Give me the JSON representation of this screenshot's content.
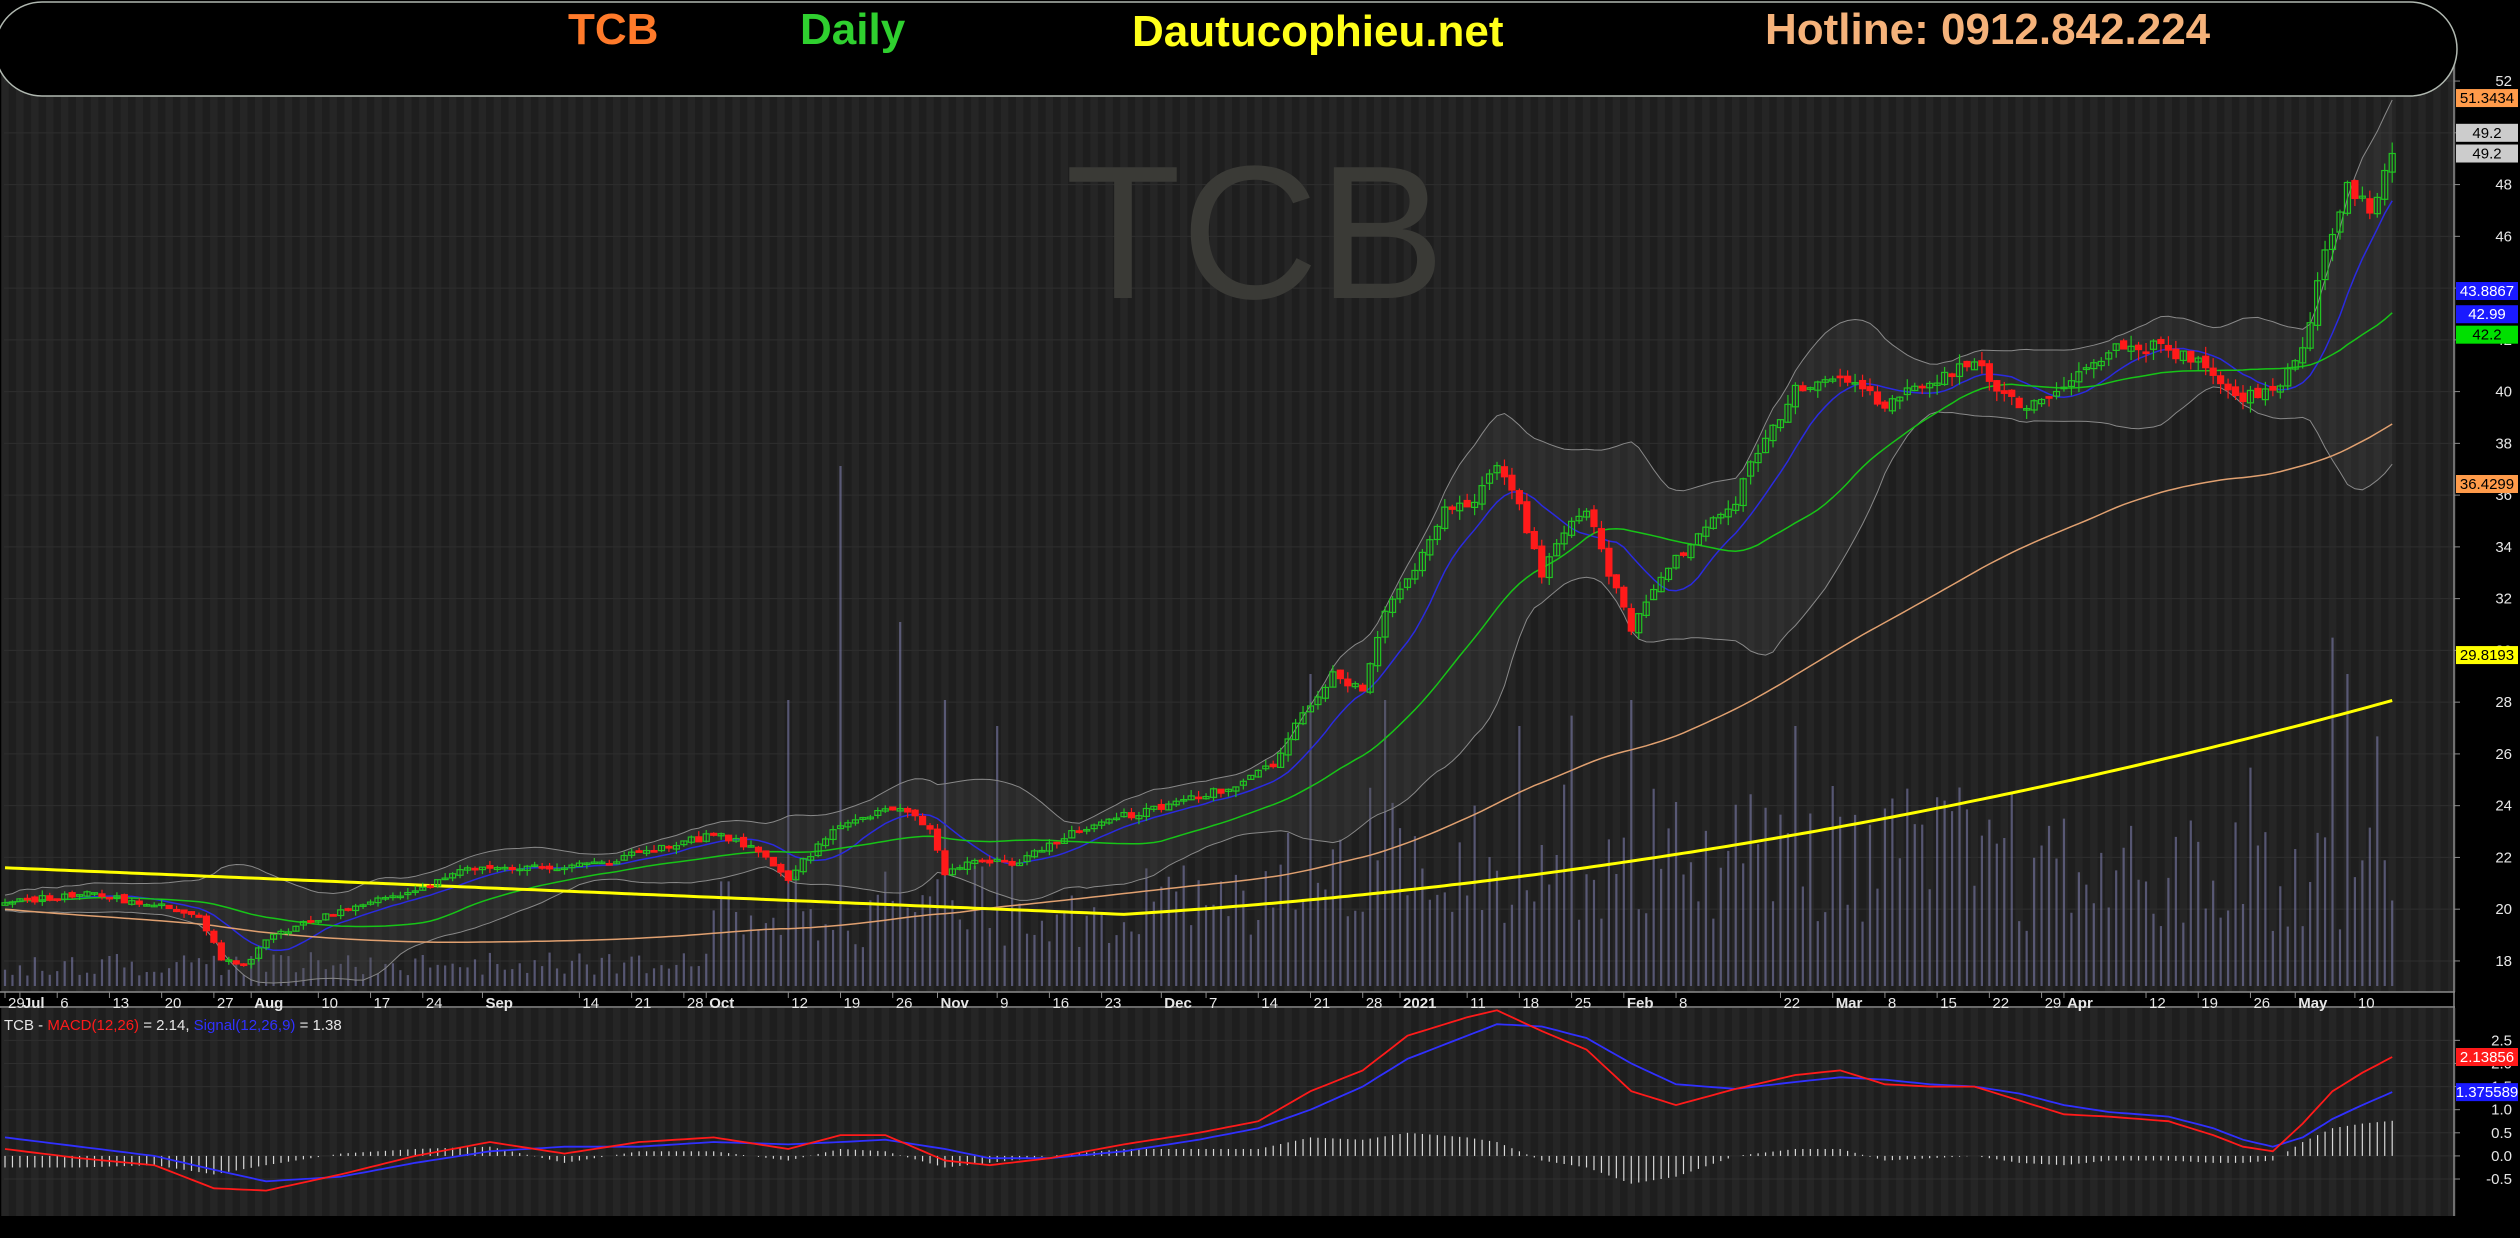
{
  "header": {
    "ticker": "TCB",
    "period": "Daily",
    "site": "Dautucophieu.net",
    "hotline": "Hotline: 0912.842.224"
  },
  "colors": {
    "background": "#000000",
    "plot": "#1e1e1e",
    "up_candle": "#21c421",
    "down_candle": "#ff1a1a",
    "ma_yellow": "#ffff00",
    "ma_tan": "#e0a070",
    "ma_green": "#17c417",
    "ma_blue": "#2a2ae0",
    "bollinger": "#888888",
    "volume": "#8484b8",
    "macd": "#ff1a1a",
    "signal": "#3030ff",
    "ticker_color": "#ff7a2a",
    "period_color": "#2fd02f",
    "site_color": "#ffff1a",
    "hotline_color": "#f5b27a"
  },
  "watermark": "TCB",
  "chart_data": [
    {
      "type": "candlestick",
      "title": "TCB Daily",
      "y_ticks": [
        18,
        20,
        22,
        24,
        26,
        28,
        30,
        32,
        34,
        36,
        38,
        40,
        42,
        44,
        46,
        48,
        50,
        52
      ],
      "ylim": [
        16.8,
        53.2
      ],
      "x_labels": [
        {
          "label": "29",
          "day": 0
        },
        {
          "label": "Jul",
          "day": 2,
          "bold": true
        },
        {
          "label": "6",
          "day": 7
        },
        {
          "label": "13",
          "day": 14
        },
        {
          "label": "20",
          "day": 21
        },
        {
          "label": "27",
          "day": 28
        },
        {
          "label": "Aug",
          "day": 33,
          "bold": true
        },
        {
          "label": "10",
          "day": 42
        },
        {
          "label": "17",
          "day": 49
        },
        {
          "label": "24",
          "day": 56
        },
        {
          "label": "Sep",
          "day": 64,
          "bold": true
        },
        {
          "label": "14",
          "day": 77
        },
        {
          "label": "21",
          "day": 84
        },
        {
          "label": "28",
          "day": 91
        },
        {
          "label": "Oct",
          "day": 94,
          "bold": true
        },
        {
          "label": "12",
          "day": 105
        },
        {
          "label": "19",
          "day": 112
        },
        {
          "label": "26",
          "day": 119
        },
        {
          "label": "Nov",
          "day": 125,
          "bold": true
        },
        {
          "label": "9",
          "day": 133
        },
        {
          "label": "16",
          "day": 140
        },
        {
          "label": "23",
          "day": 147
        },
        {
          "label": "Dec",
          "day": 155,
          "bold": true
        },
        {
          "label": "7",
          "day": 161
        },
        {
          "label": "14",
          "day": 168
        },
        {
          "label": "21",
          "day": 175
        },
        {
          "label": "28",
          "day": 182
        },
        {
          "label": "2021",
          "day": 187,
          "bold": true
        },
        {
          "label": "11",
          "day": 196
        },
        {
          "label": "18",
          "day": 203
        },
        {
          "label": "25",
          "day": 210
        },
        {
          "label": "Feb",
          "day": 217,
          "bold": true
        },
        {
          "label": "8",
          "day": 224
        },
        {
          "label": "22",
          "day": 238
        },
        {
          "label": "Mar",
          "day": 245,
          "bold": true
        },
        {
          "label": "8",
          "day": 252
        },
        {
          "label": "15",
          "day": 259
        },
        {
          "label": "22",
          "day": 266
        },
        {
          "label": "29",
          "day": 273
        },
        {
          "label": "Apr",
          "day": 276,
          "bold": true
        },
        {
          "label": "12",
          "day": 287
        },
        {
          "label": "19",
          "day": 294
        },
        {
          "label": "26",
          "day": 301
        },
        {
          "label": "May",
          "day": 307,
          "bold": true
        },
        {
          "label": "10",
          "day": 315
        }
      ],
      "price_path": [
        [
          0,
          20.2
        ],
        [
          10,
          20.6
        ],
        [
          20,
          20.2
        ],
        [
          26,
          19.8
        ],
        [
          29,
          18.0
        ],
        [
          32,
          17.8
        ],
        [
          36,
          19.0
        ],
        [
          45,
          19.9
        ],
        [
          55,
          20.8
        ],
        [
          62,
          21.5
        ],
        [
          70,
          21.6
        ],
        [
          80,
          21.8
        ],
        [
          90,
          22.5
        ],
        [
          95,
          22.9
        ],
        [
          100,
          22.4
        ],
        [
          105,
          21.2
        ],
        [
          110,
          22.8
        ],
        [
          115,
          23.6
        ],
        [
          120,
          24.0
        ],
        [
          124,
          23.0
        ],
        [
          126,
          21.4
        ],
        [
          130,
          21.8
        ],
        [
          136,
          21.8
        ],
        [
          142,
          22.8
        ],
        [
          150,
          23.6
        ],
        [
          158,
          24.2
        ],
        [
          164,
          24.7
        ],
        [
          170,
          25.6
        ],
        [
          174,
          27.5
        ],
        [
          178,
          29.0
        ],
        [
          182,
          28.5
        ],
        [
          185,
          31.5
        ],
        [
          189,
          33.0
        ],
        [
          193,
          35.5
        ],
        [
          197,
          35.8
        ],
        [
          200,
          37.0
        ],
        [
          203,
          35.5
        ],
        [
          206,
          33.0
        ],
        [
          209,
          34.5
        ],
        [
          212,
          35.5
        ],
        [
          215,
          33.0
        ],
        [
          218,
          30.8
        ],
        [
          221,
          32.5
        ],
        [
          226,
          34.2
        ],
        [
          232,
          35.8
        ],
        [
          235,
          37.8
        ],
        [
          240,
          40.0
        ],
        [
          246,
          40.6
        ],
        [
          252,
          39.5
        ],
        [
          258,
          40.3
        ],
        [
          264,
          41.2
        ],
        [
          270,
          39.3
        ],
        [
          276,
          40.0
        ],
        [
          282,
          41.6
        ],
        [
          288,
          41.8
        ],
        [
          294,
          41.2
        ],
        [
          300,
          39.8
        ],
        [
          305,
          40.3
        ],
        [
          308,
          41.5
        ],
        [
          311,
          45.5
        ],
        [
          314,
          48.0
        ],
        [
          317,
          47.0
        ],
        [
          320,
          49.2
        ]
      ],
      "volume_ylim": [
        0,
        1
      ],
      "volume_spikes": [
        [
          105,
          0.55
        ],
        [
          112,
          1.0
        ],
        [
          120,
          0.7
        ],
        [
          126,
          0.55
        ],
        [
          133,
          0.5
        ],
        [
          175,
          0.6
        ],
        [
          185,
          0.55
        ],
        [
          203,
          0.5
        ],
        [
          210,
          0.52
        ],
        [
          218,
          0.55
        ],
        [
          240,
          0.5
        ],
        [
          266,
          0.32
        ],
        [
          301,
          0.42
        ],
        [
          312,
          0.67
        ],
        [
          314,
          0.6
        ],
        [
          318,
          0.48
        ]
      ],
      "last_price": "49.2",
      "price_badges": [
        {
          "value": "51.3434",
          "color": "#ff9b4a",
          "y": 51.3434
        },
        {
          "value": "49.2",
          "color": "#cccccc",
          "y": 50.0
        },
        {
          "value": "49.2",
          "color": "#cccccc",
          "y": 49.2
        },
        {
          "value": "43.8867",
          "color": "#1a1aff",
          "y": 43.8867
        },
        {
          "value": "42.99",
          "color": "#1a1aff",
          "y": 42.99
        },
        {
          "value": "42.2",
          "color": "#00e000",
          "y": 42.2
        },
        {
          "value": "36.4299",
          "color": "#ff9b4a",
          "y": 36.4299
        },
        {
          "value": "29.8193",
          "color": "#ffff00",
          "y": 29.8193
        }
      ]
    },
    {
      "type": "line",
      "title": "TCB - MACD(12,26) = 2.14, Signal(12,26,9) = 1.38",
      "legend_prefix": "TCB - ",
      "macd_label": "MACD(12,26)",
      "macd_value_text": " = 2.14, ",
      "signal_label": "Signal(12,26,9)",
      "signal_value_text": " = 1.38",
      "y_ticks": [
        -0.5,
        0.0,
        0.5,
        1.0,
        1.5,
        2.0,
        2.5
      ],
      "y_tick_labels": [
        "-0.5",
        "0.0",
        "0.5",
        "1.0",
        "1.5",
        "2.0",
        "2.5"
      ],
      "ylim": [
        -1.3,
        3.2
      ],
      "macd_path": [
        [
          0,
          0.15
        ],
        [
          10,
          -0.05
        ],
        [
          20,
          -0.2
        ],
        [
          28,
          -0.7
        ],
        [
          35,
          -0.75
        ],
        [
          45,
          -0.4
        ],
        [
          55,
          0.0
        ],
        [
          65,
          0.3
        ],
        [
          75,
          0.05
        ],
        [
          85,
          0.3
        ],
        [
          95,
          0.4
        ],
        [
          105,
          0.15
        ],
        [
          112,
          0.45
        ],
        [
          118,
          0.45
        ],
        [
          126,
          -0.1
        ],
        [
          132,
          -0.2
        ],
        [
          140,
          -0.05
        ],
        [
          150,
          0.25
        ],
        [
          160,
          0.5
        ],
        [
          168,
          0.75
        ],
        [
          175,
          1.4
        ],
        [
          182,
          1.85
        ],
        [
          188,
          2.6
        ],
        [
          196,
          3.0
        ],
        [
          200,
          3.15
        ],
        [
          206,
          2.7
        ],
        [
          212,
          2.3
        ],
        [
          218,
          1.4
        ],
        [
          224,
          1.1
        ],
        [
          232,
          1.45
        ],
        [
          240,
          1.75
        ],
        [
          246,
          1.85
        ],
        [
          252,
          1.55
        ],
        [
          258,
          1.5
        ],
        [
          264,
          1.5
        ],
        [
          270,
          1.2
        ],
        [
          276,
          0.9
        ],
        [
          282,
          0.85
        ],
        [
          290,
          0.75
        ],
        [
          296,
          0.45
        ],
        [
          300,
          0.2
        ],
        [
          304,
          0.1
        ],
        [
          308,
          0.7
        ],
        [
          312,
          1.4
        ],
        [
          316,
          1.8
        ],
        [
          320,
          2.14
        ]
      ],
      "signal_path": [
        [
          0,
          0.4
        ],
        [
          10,
          0.2
        ],
        [
          20,
          0.0
        ],
        [
          28,
          -0.3
        ],
        [
          35,
          -0.55
        ],
        [
          45,
          -0.45
        ],
        [
          55,
          -0.15
        ],
        [
          65,
          0.1
        ],
        [
          75,
          0.2
        ],
        [
          85,
          0.2
        ],
        [
          95,
          0.3
        ],
        [
          105,
          0.25
        ],
        [
          112,
          0.3
        ],
        [
          118,
          0.35
        ],
        [
          126,
          0.15
        ],
        [
          132,
          -0.05
        ],
        [
          140,
          -0.05
        ],
        [
          150,
          0.1
        ],
        [
          160,
          0.35
        ],
        [
          168,
          0.6
        ],
        [
          175,
          1.0
        ],
        [
          182,
          1.5
        ],
        [
          188,
          2.1
        ],
        [
          196,
          2.6
        ],
        [
          200,
          2.85
        ],
        [
          206,
          2.8
        ],
        [
          212,
          2.55
        ],
        [
          218,
          2.0
        ],
        [
          224,
          1.55
        ],
        [
          232,
          1.45
        ],
        [
          240,
          1.6
        ],
        [
          246,
          1.7
        ],
        [
          252,
          1.65
        ],
        [
          258,
          1.55
        ],
        [
          264,
          1.5
        ],
        [
          270,
          1.35
        ],
        [
          276,
          1.1
        ],
        [
          282,
          0.95
        ],
        [
          290,
          0.85
        ],
        [
          296,
          0.6
        ],
        [
          300,
          0.35
        ],
        [
          304,
          0.2
        ],
        [
          308,
          0.4
        ],
        [
          312,
          0.8
        ],
        [
          316,
          1.1
        ],
        [
          320,
          1.38
        ]
      ],
      "value_badges": [
        {
          "value": "2.13856",
          "color": "#ff1a1a",
          "y": 2.14
        },
        {
          "value": "1.375589",
          "color": "#1a1aff",
          "y": 1.38
        }
      ]
    }
  ]
}
